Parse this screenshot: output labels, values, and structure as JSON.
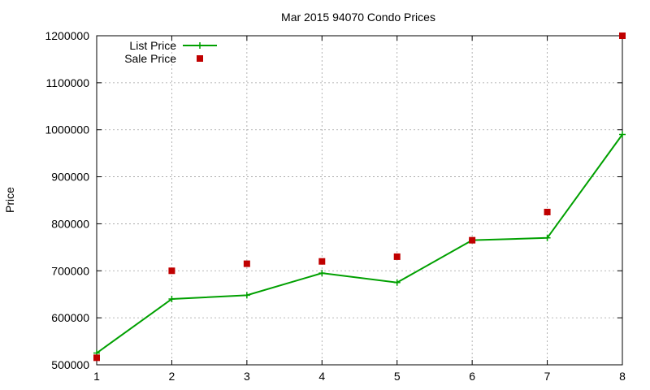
{
  "chart_data": {
    "type": "line",
    "title": "Mar 2015 94070 Condo Prices",
    "xlabel": "",
    "ylabel": "Price",
    "x": [
      1,
      2,
      3,
      4,
      5,
      6,
      7,
      8
    ],
    "xlim": [
      1,
      8
    ],
    "ylim": [
      500000,
      1200000
    ],
    "x_ticks": [
      "1",
      "2",
      "3",
      "4",
      "5",
      "6",
      "7",
      "8"
    ],
    "y_ticks": [
      "500000",
      "600000",
      "700000",
      "800000",
      "900000",
      "1000000",
      "1100000",
      "1200000"
    ],
    "grid": true,
    "legend_position": "top-left",
    "series": [
      {
        "name": "List Price",
        "style": "line-with-plus-markers",
        "color": "#00a000",
        "values": [
          525000,
          640000,
          648000,
          695000,
          675000,
          765000,
          770000,
          990000
        ]
      },
      {
        "name": "Sale Price",
        "style": "square-markers",
        "color": "#c00000",
        "values": [
          515000,
          700000,
          715000,
          720000,
          730000,
          765000,
          825000,
          1200000
        ]
      }
    ]
  }
}
